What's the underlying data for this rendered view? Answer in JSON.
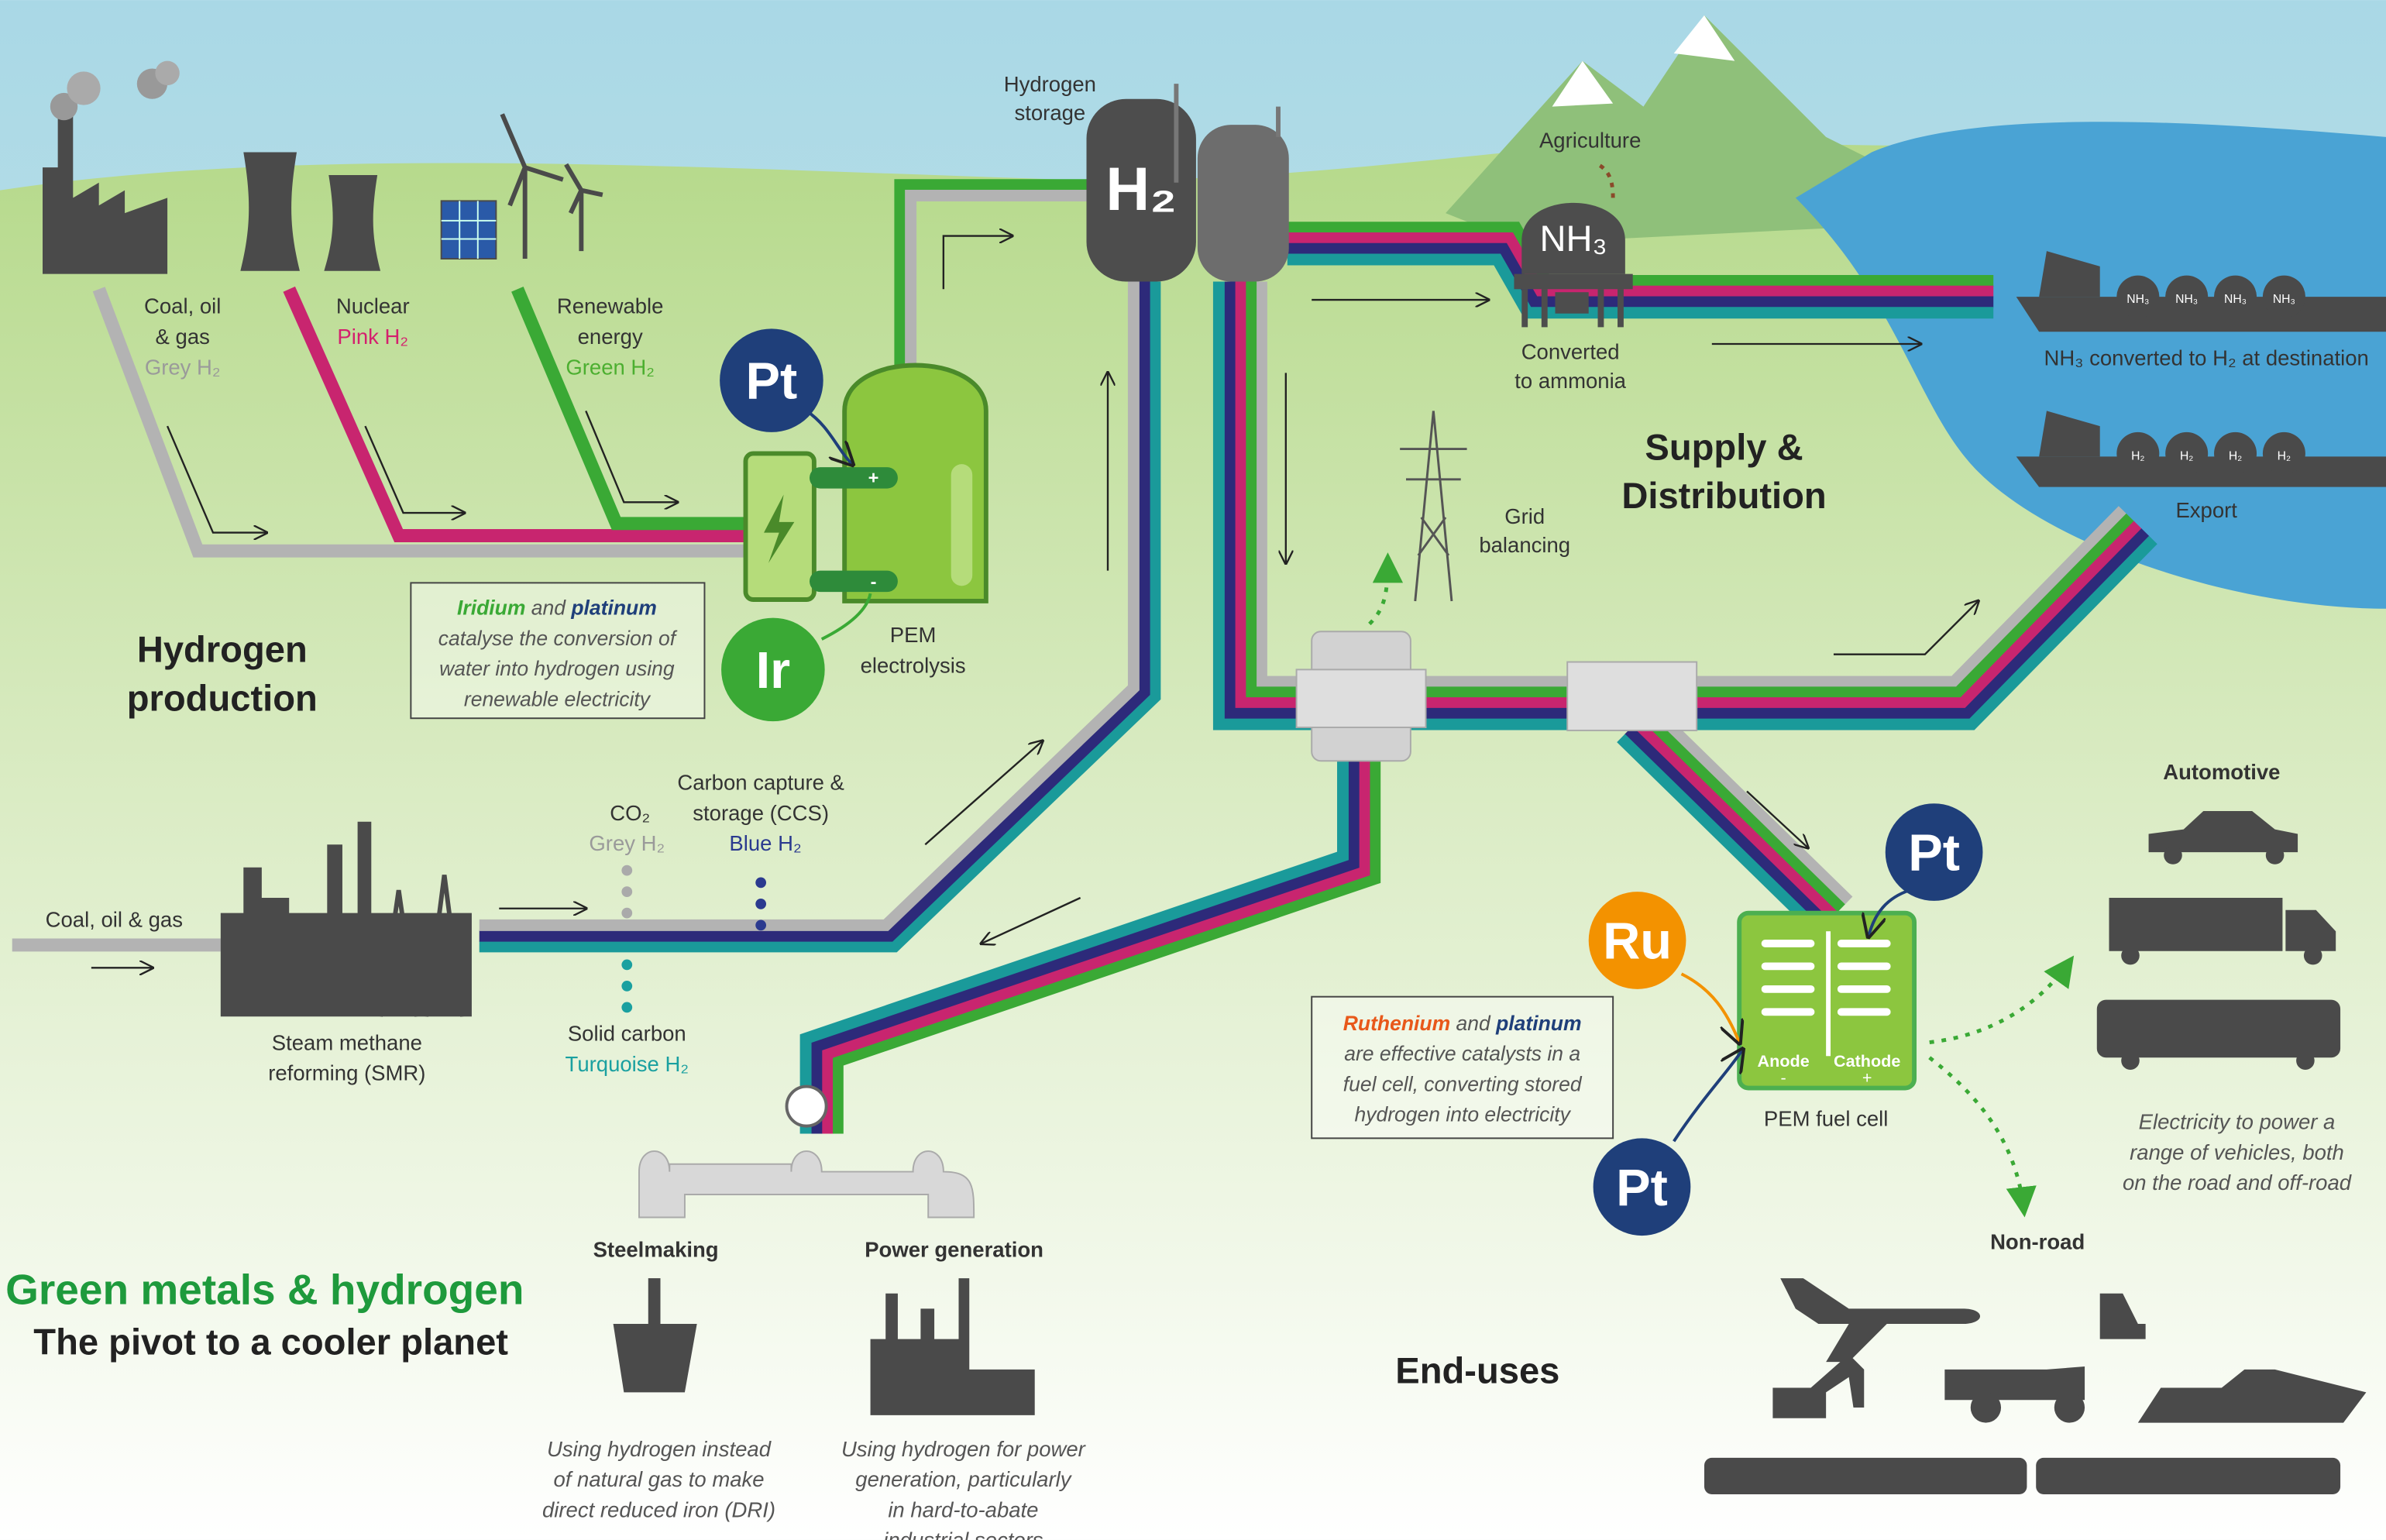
{
  "header": {
    "title": "Green metals & hydrogen",
    "subtitle": "The pivot to a cooler planet"
  },
  "sections": {
    "production": [
      "Hydrogen",
      "production"
    ],
    "distribution": [
      "Supply &",
      "Distribution"
    ],
    "end_uses": "End-uses"
  },
  "sources": [
    {
      "label": [
        "Coal, oil",
        "& gas"
      ],
      "type": "Grey H₂"
    },
    {
      "label": [
        "Nuclear"
      ],
      "type": "Pink H₂"
    },
    {
      "label": [
        "Renewable",
        "energy"
      ],
      "type": "Green H₂"
    }
  ],
  "storage": {
    "label": [
      "Hydrogen",
      "storage"
    ],
    "symbol": "H₂"
  },
  "electrolysis": {
    "label": [
      "PEM",
      "electrolysis"
    ],
    "catalysts": [
      "Pt",
      "Ir"
    ],
    "terminals": [
      "+",
      "-"
    ],
    "note": {
      "metal1": "Iridium",
      "and": "and",
      "metal2": "platinum",
      "lines": [
        "catalyse the conversion of",
        "water into hydrogen using",
        "renewable electricity"
      ]
    }
  },
  "smr": {
    "input": "Coal, oil & gas",
    "label": [
      "Steam methane",
      "reforming (SMR)"
    ],
    "co2": "CO₂",
    "grey": "Grey H₂",
    "ccs": [
      "Carbon capture &",
      "storage (CCS)"
    ],
    "blue": "Blue H₂",
    "solid": "Solid carbon",
    "turquoise": "Turquoise H₂"
  },
  "ammonia": {
    "agriculture": "Agriculture",
    "symbol": "NH₃",
    "label": [
      "Converted",
      "to ammonia"
    ]
  },
  "export": {
    "nh3_ship": "NH₃ converted to H₂ at destination",
    "h2_ship": "Export",
    "nh3_tanks": [
      "NH₃",
      "NH₃",
      "NH₃",
      "NH₃"
    ],
    "h2_tanks": [
      "H₂",
      "H₂",
      "H₂",
      "H₂"
    ]
  },
  "grid": [
    "Grid",
    "balancing"
  ],
  "industry": [
    {
      "label": "Steelmaking",
      "desc": [
        "Using hydrogen instead",
        "of natural gas to make",
        "direct reduced iron (DRI)"
      ]
    },
    {
      "label": "Power generation",
      "desc": [
        "Using hydrogen for power",
        "generation, particularly",
        "in hard-to-abate",
        "industrial sectors"
      ]
    }
  ],
  "fuel_cell": {
    "label": "PEM fuel cell",
    "anode": "Anode",
    "cathode": "Cathode",
    "minus": "-",
    "plus": "+",
    "catalysts": [
      "Ru",
      "Pt",
      "Pt"
    ],
    "note": {
      "metal1": "Ruthenium",
      "and": "and",
      "metal2": "platinum",
      "lines": [
        "are effective catalysts in a",
        "fuel cell, converting stored",
        "hydrogen into electricity"
      ]
    }
  },
  "vehicles": {
    "automotive": "Automotive",
    "non_road": "Non-road",
    "desc": [
      "Electricity to power a",
      "range of vehicles, both",
      "on the road and off-road"
    ]
  }
}
